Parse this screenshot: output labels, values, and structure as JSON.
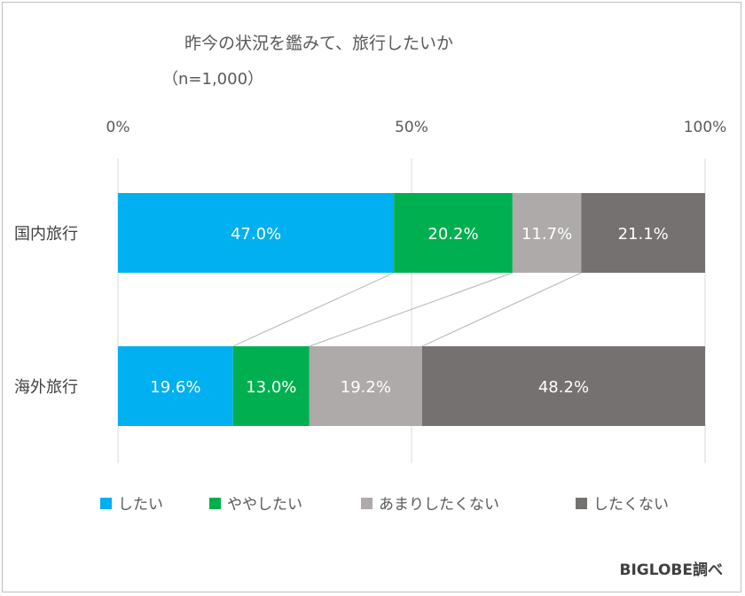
{
  "chart_data": {
    "type": "bar",
    "orientation": "horizontal",
    "stacked": "percent",
    "title": "昨今の状況を鑑みて、旅行したいか",
    "subtitle": "（n=1,000）",
    "categories": [
      "国内旅行",
      "海外旅行"
    ],
    "series": [
      {
        "name": "したい",
        "values": [
          47.0,
          19.6
        ],
        "labels": [
          "47.0%",
          "19.6%"
        ],
        "color": "#00b0f0"
      },
      {
        "name": "ややしたい",
        "values": [
          20.2,
          13.0
        ],
        "labels": [
          "20.2%",
          "13.0%"
        ],
        "color": "#00b050"
      },
      {
        "name": "あまりしたくない",
        "values": [
          11.7,
          19.2
        ],
        "labels": [
          "11.7%",
          "19.2%"
        ],
        "color": "#aeaaaa"
      },
      {
        "name": "したくない",
        "values": [
          21.1,
          48.2
        ],
        "labels": [
          "21.1%",
          "48.2%"
        ],
        "color": "#767171"
      }
    ],
    "x_ticks": [
      "0%",
      "50%",
      "100%"
    ],
    "xlim": [
      0,
      100
    ],
    "legend_position": "bottom",
    "series_lines": true
  },
  "source": "BIGLOBE調べ"
}
